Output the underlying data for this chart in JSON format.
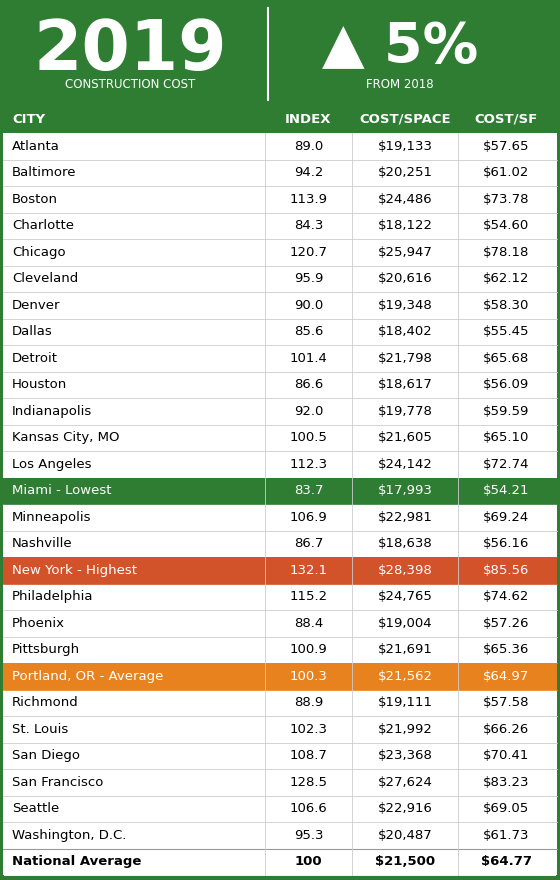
{
  "header_bg": "#2e7d32",
  "year": "2019",
  "construction_cost_label": "CONSTRUCTION COST",
  "pct_change": "▲ 5%",
  "from_label": "FROM 2018",
  "col_headers": [
    "CITY",
    "INDEX",
    "COST/SPACE",
    "COST/SF"
  ],
  "rows": [
    {
      "city": "Atlanta",
      "index": "89.0",
      "cost_space": "$19,133",
      "cost_sf": "$57.65",
      "highlight": "none"
    },
    {
      "city": "Baltimore",
      "index": "94.2",
      "cost_space": "$20,251",
      "cost_sf": "$61.02",
      "highlight": "none"
    },
    {
      "city": "Boston",
      "index": "113.9",
      "cost_space": "$24,486",
      "cost_sf": "$73.78",
      "highlight": "none"
    },
    {
      "city": "Charlotte",
      "index": "84.3",
      "cost_space": "$18,122",
      "cost_sf": "$54.60",
      "highlight": "none"
    },
    {
      "city": "Chicago",
      "index": "120.7",
      "cost_space": "$25,947",
      "cost_sf": "$78.18",
      "highlight": "none"
    },
    {
      "city": "Cleveland",
      "index": "95.9",
      "cost_space": "$20,616",
      "cost_sf": "$62.12",
      "highlight": "none"
    },
    {
      "city": "Denver",
      "index": "90.0",
      "cost_space": "$19,348",
      "cost_sf": "$58.30",
      "highlight": "none"
    },
    {
      "city": "Dallas",
      "index": "85.6",
      "cost_space": "$18,402",
      "cost_sf": "$55.45",
      "highlight": "none"
    },
    {
      "city": "Detroit",
      "index": "101.4",
      "cost_space": "$21,798",
      "cost_sf": "$65.68",
      "highlight": "none"
    },
    {
      "city": "Houston",
      "index": "86.6",
      "cost_space": "$18,617",
      "cost_sf": "$56.09",
      "highlight": "none"
    },
    {
      "city": "Indianapolis",
      "index": "92.0",
      "cost_space": "$19,778",
      "cost_sf": "$59.59",
      "highlight": "none"
    },
    {
      "city": "Kansas City, MO",
      "index": "100.5",
      "cost_space": "$21,605",
      "cost_sf": "$65.10",
      "highlight": "none"
    },
    {
      "city": "Los Angeles",
      "index": "112.3",
      "cost_space": "$24,142",
      "cost_sf": "$72.74",
      "highlight": "none"
    },
    {
      "city": "Miami - Lowest",
      "index": "83.7",
      "cost_space": "$17,993",
      "cost_sf": "$54.21",
      "highlight": "green"
    },
    {
      "city": "Minneapolis",
      "index": "106.9",
      "cost_space": "$22,981",
      "cost_sf": "$69.24",
      "highlight": "none"
    },
    {
      "city": "Nashville",
      "index": "86.7",
      "cost_space": "$18,638",
      "cost_sf": "$56.16",
      "highlight": "none"
    },
    {
      "city": "New York - Highest",
      "index": "132.1",
      "cost_space": "$28,398",
      "cost_sf": "$85.56",
      "highlight": "red"
    },
    {
      "city": "Philadelphia",
      "index": "115.2",
      "cost_space": "$24,765",
      "cost_sf": "$74.62",
      "highlight": "none"
    },
    {
      "city": "Phoenix",
      "index": "88.4",
      "cost_space": "$19,004",
      "cost_sf": "$57.26",
      "highlight": "none"
    },
    {
      "city": "Pittsburgh",
      "index": "100.9",
      "cost_space": "$21,691",
      "cost_sf": "$65.36",
      "highlight": "none"
    },
    {
      "city": "Portland, OR - Average",
      "index": "100.3",
      "cost_space": "$21,562",
      "cost_sf": "$64.97",
      "highlight": "orange"
    },
    {
      "city": "Richmond",
      "index": "88.9",
      "cost_space": "$19,111",
      "cost_sf": "$57.58",
      "highlight": "none"
    },
    {
      "city": "St. Louis",
      "index": "102.3",
      "cost_space": "$21,992",
      "cost_sf": "$66.26",
      "highlight": "none"
    },
    {
      "city": "San Diego",
      "index": "108.7",
      "cost_space": "$23,368",
      "cost_sf": "$70.41",
      "highlight": "none"
    },
    {
      "city": "San Francisco",
      "index": "128.5",
      "cost_space": "$27,624",
      "cost_sf": "$83.23",
      "highlight": "none"
    },
    {
      "city": "Seattle",
      "index": "106.6",
      "cost_space": "$22,916",
      "cost_sf": "$69.05",
      "highlight": "none"
    },
    {
      "city": "Washington, D.C.",
      "index": "95.3",
      "cost_space": "$20,487",
      "cost_sf": "$61.73",
      "highlight": "none"
    }
  ],
  "footer": {
    "city": "National Average",
    "index": "100",
    "cost_space": "$21,500",
    "cost_sf": "$64.77"
  },
  "colors": {
    "green_bg": "#2e7d32",
    "green_row": "#2e7d32",
    "red_row": "#d2522a",
    "orange_row": "#e8821e",
    "white": "#ffffff",
    "black": "#000000",
    "col_header_bg": "#2e7d32",
    "row_text_normal": "#000000",
    "row_text_highlight": "#ffffff",
    "border": "#2e7d32",
    "divider_light": "#cccccc",
    "divider_dark": "#999999"
  }
}
